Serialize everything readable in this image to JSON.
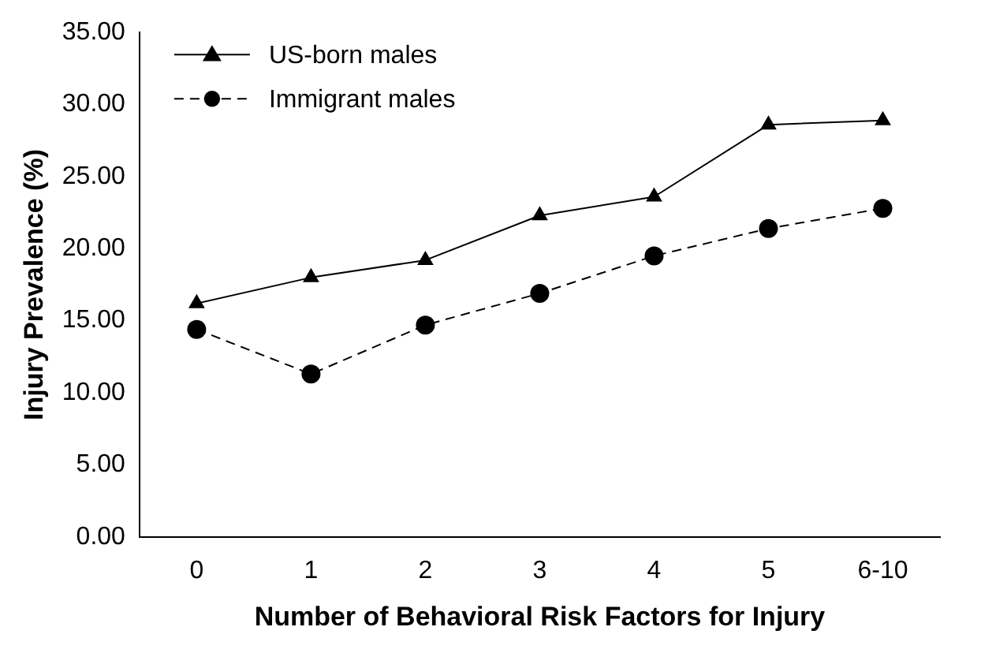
{
  "chart_data": {
    "type": "line",
    "xlabel": "Number of Behavioral Risk Factors for Injury",
    "ylabel": "Injury Prevalence (%)",
    "categories": [
      "0",
      "1",
      "2",
      "3",
      "4",
      "5",
      "6-10"
    ],
    "series": [
      {
        "name": "US-born males",
        "color": "#000000",
        "marker": "triangle",
        "line_style": "solid",
        "values": [
          16.2,
          18.0,
          19.2,
          22.3,
          23.6,
          28.6,
          28.9
        ]
      },
      {
        "name": "Immigrant males",
        "color": "#000000",
        "marker": "circle",
        "line_style": "dashed",
        "values": [
          14.4,
          11.3,
          14.7,
          16.9,
          19.5,
          21.4,
          22.8
        ]
      }
    ],
    "ylim": [
      0,
      35
    ],
    "yticks": [
      {
        "value": 0,
        "label": "0.00"
      },
      {
        "value": 5,
        "label": "5.00"
      },
      {
        "value": 10,
        "label": "10.00"
      },
      {
        "value": 15,
        "label": "15.00"
      },
      {
        "value": 20,
        "label": "20.00"
      },
      {
        "value": 25,
        "label": "25.00"
      },
      {
        "value": 30,
        "label": "30.00"
      },
      {
        "value": 35,
        "label": "35.00"
      }
    ],
    "grid": false,
    "legend": "top left"
  }
}
